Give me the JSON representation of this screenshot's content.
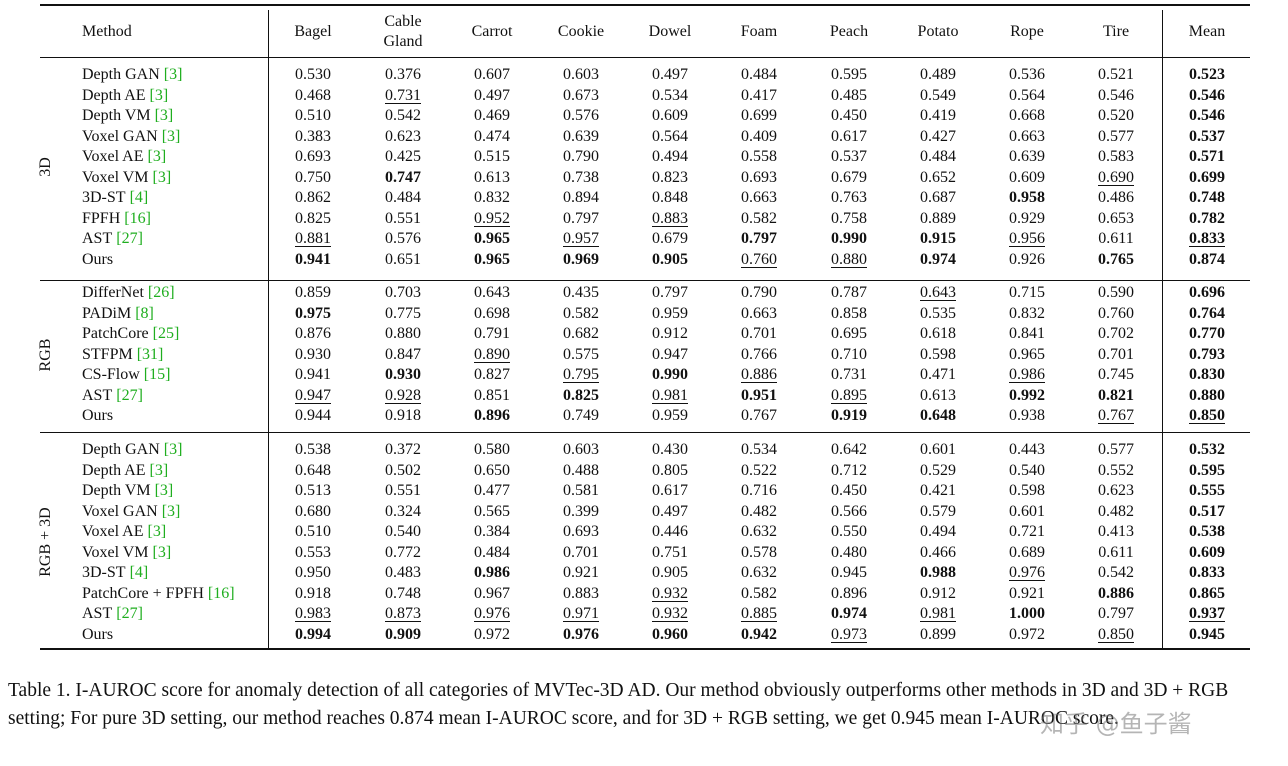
{
  "table": {
    "header": [
      "Method",
      "Bagel",
      "Cable Gland",
      "Carrot",
      "Cookie",
      "Dowel",
      "Foam",
      "Peach",
      "Potato",
      "Rope",
      "Tire",
      "Mean"
    ],
    "groups": [
      {
        "label": "3D",
        "rows": [
          {
            "method": "Depth GAN",
            "ref": "[3]",
            "values": [
              "0.530",
              "0.376",
              "0.607",
              "0.603",
              "0.497",
              "0.484",
              "0.595",
              "0.489",
              "0.536",
              "0.521",
              "0.523"
            ],
            "bold": [],
            "underline": []
          },
          {
            "method": "Depth AE",
            "ref": "[3]",
            "values": [
              "0.468",
              "0.731",
              "0.497",
              "0.673",
              "0.534",
              "0.417",
              "0.485",
              "0.549",
              "0.564",
              "0.546",
              "0.546"
            ],
            "bold": [],
            "underline": [
              1
            ]
          },
          {
            "method": "Depth VM",
            "ref": "[3]",
            "values": [
              "0.510",
              "0.542",
              "0.469",
              "0.576",
              "0.609",
              "0.699",
              "0.450",
              "0.419",
              "0.668",
              "0.520",
              "0.546"
            ],
            "bold": [],
            "underline": []
          },
          {
            "method": "Voxel GAN",
            "ref": "[3]",
            "values": [
              "0.383",
              "0.623",
              "0.474",
              "0.639",
              "0.564",
              "0.409",
              "0.617",
              "0.427",
              "0.663",
              "0.577",
              "0.537"
            ],
            "bold": [],
            "underline": []
          },
          {
            "method": "Voxel AE",
            "ref": "[3]",
            "values": [
              "0.693",
              "0.425",
              "0.515",
              "0.790",
              "0.494",
              "0.558",
              "0.537",
              "0.484",
              "0.639",
              "0.583",
              "0.571"
            ],
            "bold": [],
            "underline": []
          },
          {
            "method": "Voxel VM",
            "ref": "[3]",
            "values": [
              "0.750",
              "0.747",
              "0.613",
              "0.738",
              "0.823",
              "0.693",
              "0.679",
              "0.652",
              "0.609",
              "0.690",
              "0.699"
            ],
            "bold": [
              1
            ],
            "underline": [
              9
            ]
          },
          {
            "method": "3D-ST",
            "ref": "[4]",
            "values": [
              "0.862",
              "0.484",
              "0.832",
              "0.894",
              "0.848",
              "0.663",
              "0.763",
              "0.687",
              "0.958",
              "0.486",
              "0.748"
            ],
            "bold": [
              8
            ],
            "underline": []
          },
          {
            "method": "FPFH",
            "ref": "[16]",
            "values": [
              "0.825",
              "0.551",
              "0.952",
              "0.797",
              "0.883",
              "0.582",
              "0.758",
              "0.889",
              "0.929",
              "0.653",
              "0.782"
            ],
            "bold": [],
            "underline": [
              2,
              4
            ]
          },
          {
            "method": "AST",
            "ref": "[27]",
            "values": [
              "0.881",
              "0.576",
              "0.965",
              "0.957",
              "0.679",
              "0.797",
              "0.990",
              "0.915",
              "0.956",
              "0.611",
              "0.833"
            ],
            "bold": [
              2,
              5,
              6,
              7
            ],
            "underline": [
              0,
              3,
              8,
              10
            ]
          },
          {
            "method": "Ours",
            "values": [
              "0.941",
              "0.651",
              "0.965",
              "0.969",
              "0.905",
              "0.760",
              "0.880",
              "0.974",
              "0.926",
              "0.765",
              "0.874"
            ],
            "bold": [
              0,
              2,
              3,
              4,
              7,
              9
            ],
            "underline": [
              5,
              6
            ]
          }
        ]
      },
      {
        "label": "RGB",
        "rows": [
          {
            "method": "DifferNet",
            "ref": "[26]",
            "values": [
              "0.859",
              "0.703",
              "0.643",
              "0.435",
              "0.797",
              "0.790",
              "0.787",
              "0.643",
              "0.715",
              "0.590",
              "0.696"
            ],
            "bold": [],
            "underline": [
              7
            ]
          },
          {
            "method": "PADiM",
            "ref": "[8]",
            "values": [
              "0.975",
              "0.775",
              "0.698",
              "0.582",
              "0.959",
              "0.663",
              "0.858",
              "0.535",
              "0.832",
              "0.760",
              "0.764"
            ],
            "bold": [
              0
            ],
            "underline": []
          },
          {
            "method": "PatchCore",
            "ref": "[25]",
            "values": [
              "0.876",
              "0.880",
              "0.791",
              "0.682",
              "0.912",
              "0.701",
              "0.695",
              "0.618",
              "0.841",
              "0.702",
              "0.770"
            ],
            "bold": [],
            "underline": []
          },
          {
            "method": "STFPM",
            "ref": "[31]",
            "values": [
              "0.930",
              "0.847",
              "0.890",
              "0.575",
              "0.947",
              "0.766",
              "0.710",
              "0.598",
              "0.965",
              "0.701",
              "0.793"
            ],
            "bold": [],
            "underline": [
              2
            ]
          },
          {
            "method": "CS-Flow",
            "ref": "[15]",
            "values": [
              "0.941",
              "0.930",
              "0.827",
              "0.795",
              "0.990",
              "0.886",
              "0.731",
              "0.471",
              "0.986",
              "0.745",
              "0.830"
            ],
            "bold": [
              1,
              4
            ],
            "underline": [
              3,
              5,
              8
            ]
          },
          {
            "method": "AST",
            "ref": "[27]",
            "values": [
              "0.947",
              "0.928",
              "0.851",
              "0.825",
              "0.981",
              "0.951",
              "0.895",
              "0.613",
              "0.992",
              "0.821",
              "0.880"
            ],
            "bold": [
              3,
              5,
              8,
              9
            ],
            "underline": [
              0,
              1,
              4,
              6
            ]
          },
          {
            "method": "Ours",
            "values": [
              "0.944",
              "0.918",
              "0.896",
              "0.749",
              "0.959",
              "0.767",
              "0.919",
              "0.648",
              "0.938",
              "0.767",
              "0.850"
            ],
            "bold": [
              2,
              6,
              7
            ],
            "underline": [
              9,
              10
            ]
          }
        ]
      },
      {
        "label": "RGB + 3D",
        "rows": [
          {
            "method": "Depth GAN",
            "ref": "[3]",
            "values": [
              "0.538",
              "0.372",
              "0.580",
              "0.603",
              "0.430",
              "0.534",
              "0.642",
              "0.601",
              "0.443",
              "0.577",
              "0.532"
            ],
            "bold": [],
            "underline": []
          },
          {
            "method": "Depth AE",
            "ref": "[3]",
            "values": [
              "0.648",
              "0.502",
              "0.650",
              "0.488",
              "0.805",
              "0.522",
              "0.712",
              "0.529",
              "0.540",
              "0.552",
              "0.595"
            ],
            "bold": [],
            "underline": []
          },
          {
            "method": "Depth VM",
            "ref": "[3]",
            "values": [
              "0.513",
              "0.551",
              "0.477",
              "0.581",
              "0.617",
              "0.716",
              "0.450",
              "0.421",
              "0.598",
              "0.623",
              "0.555"
            ],
            "bold": [],
            "underline": []
          },
          {
            "method": "Voxel GAN",
            "ref": "[3]",
            "values": [
              "0.680",
              "0.324",
              "0.565",
              "0.399",
              "0.497",
              "0.482",
              "0.566",
              "0.579",
              "0.601",
              "0.482",
              "0.517"
            ],
            "bold": [],
            "underline": []
          },
          {
            "method": "Voxel AE",
            "ref": "[3]",
            "values": [
              "0.510",
              "0.540",
              "0.384",
              "0.693",
              "0.446",
              "0.632",
              "0.550",
              "0.494",
              "0.721",
              "0.413",
              "0.538"
            ],
            "bold": [],
            "underline": []
          },
          {
            "method": "Voxel VM",
            "ref": "[3]",
            "values": [
              "0.553",
              "0.772",
              "0.484",
              "0.701",
              "0.751",
              "0.578",
              "0.480",
              "0.466",
              "0.689",
              "0.611",
              "0.609"
            ],
            "bold": [],
            "underline": []
          },
          {
            "method": "3D-ST",
            "ref": "[4]",
            "values": [
              "0.950",
              "0.483",
              "0.986",
              "0.921",
              "0.905",
              "0.632",
              "0.945",
              "0.988",
              "0.976",
              "0.542",
              "0.833"
            ],
            "bold": [
              2,
              7
            ],
            "underline": [
              8
            ]
          },
          {
            "method": "PatchCore + FPFH",
            "ref": "[16]",
            "values": [
              "0.918",
              "0.748",
              "0.967",
              "0.883",
              "0.932",
              "0.582",
              "0.896",
              "0.912",
              "0.921",
              "0.886",
              "0.865"
            ],
            "bold": [
              9
            ],
            "underline": [
              4
            ]
          },
          {
            "method": "AST",
            "ref": "[27]",
            "values": [
              "0.983",
              "0.873",
              "0.976",
              "0.971",
              "0.932",
              "0.885",
              "0.974",
              "0.981",
              "1.000",
              "0.797",
              "0.937"
            ],
            "bold": [
              6,
              8
            ],
            "underline": [
              0,
              1,
              2,
              3,
              4,
              5,
              7,
              10
            ]
          },
          {
            "method": "Ours",
            "values": [
              "0.994",
              "0.909",
              "0.972",
              "0.976",
              "0.960",
              "0.942",
              "0.973",
              "0.899",
              "0.972",
              "0.850",
              "0.945"
            ],
            "bold": [
              0,
              1,
              3,
              4,
              5
            ],
            "underline": [
              6,
              9
            ]
          }
        ]
      }
    ]
  },
  "caption": "Table 1. I-AUROC score for anomaly detection of all categories of MVTec-3D AD. Our method obviously outperforms other methods in 3D and 3D + RGB setting; For pure 3D setting, our method reaches 0.874 mean I-AUROC score, and for 3D + RGB setting, we get 0.945 mean I-AUROC score.",
  "watermark": "知乎 @鱼子酱"
}
